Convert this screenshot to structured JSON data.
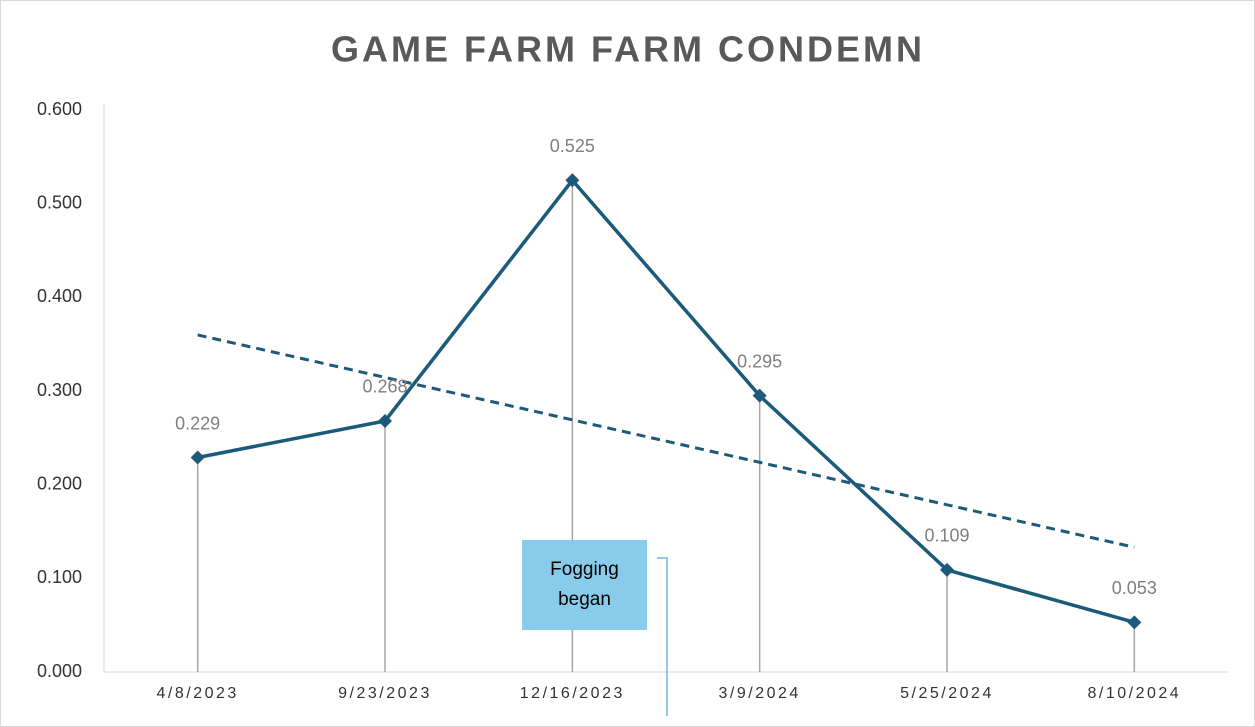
{
  "chart_data": {
    "type": "line",
    "title": "GAME FARM FARM CONDEMN",
    "categories": [
      "4/8/2023",
      "9/23/2023",
      "12/16/2023",
      "3/9/2024",
      "5/25/2024",
      "8/10/2024"
    ],
    "series": [
      {
        "name": "Condemn",
        "color": "#1b5a7a",
        "values": [
          0.229,
          0.268,
          0.525,
          0.295,
          0.109,
          0.053
        ]
      }
    ],
    "ylim": [
      0,
      0.6
    ],
    "yticks": [
      {
        "value": 0,
        "label": "0.000"
      },
      {
        "value": 0.1,
        "label": "0.100"
      },
      {
        "value": 0.2,
        "label": "0.200"
      },
      {
        "value": 0.3,
        "label": "0.300"
      },
      {
        "value": 0.4,
        "label": "0.400"
      },
      {
        "value": 0.5,
        "label": "0.500"
      },
      {
        "value": 0.6,
        "label": "0.600"
      }
    ],
    "trendline": "linear",
    "drop_lines": true,
    "grid": false,
    "annotation": {
      "text": "Fogging began",
      "color": "#89cbea"
    }
  }
}
